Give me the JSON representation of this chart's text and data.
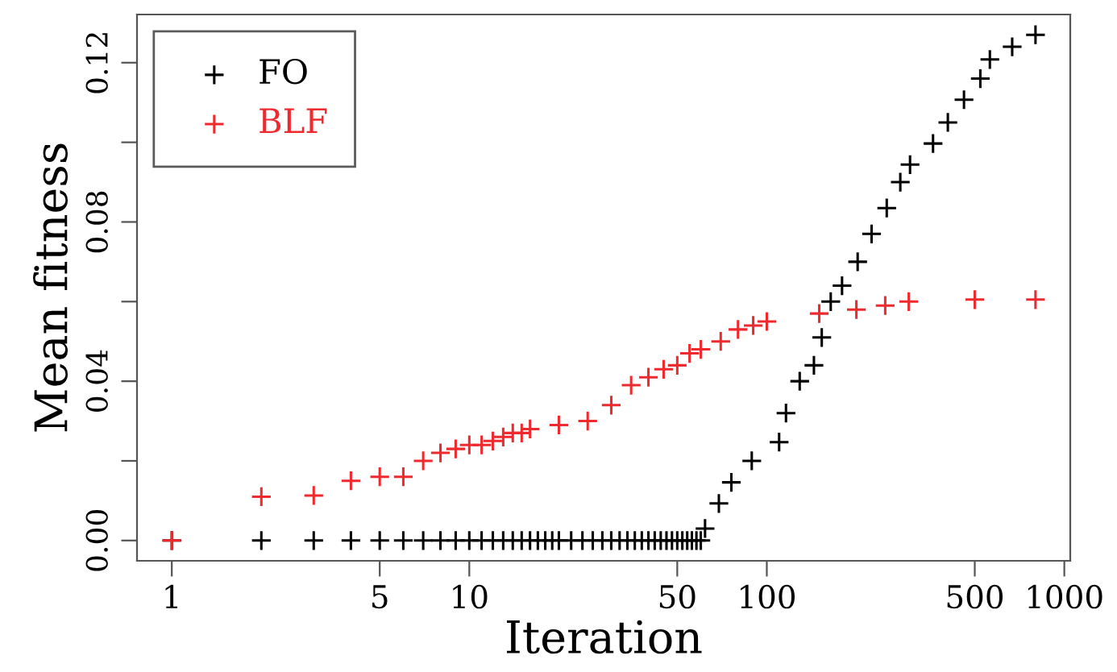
{
  "chart_data": {
    "type": "scatter",
    "xlabel": "Iteration",
    "ylabel": "Mean fitness",
    "log": "x",
    "marker": "cross",
    "legend": "top left",
    "grid": false,
    "xlim": [
      0.764,
      1047
    ],
    "xticks": [
      1,
      5,
      10,
      50,
      100,
      500,
      1000
    ],
    "ylim": [
      -0.0051,
      0.1321
    ],
    "yticks": [
      {
        "value": 0,
        "label": "0.00"
      },
      {
        "value": 0.02,
        "label": null
      },
      {
        "value": 0.04,
        "label": "0.04"
      },
      {
        "value": 0.06,
        "label": null
      },
      {
        "value": 0.08,
        "label": "0.08"
      },
      {
        "value": 0.1,
        "label": null
      },
      {
        "value": 0.12,
        "label": "0.12"
      }
    ],
    "series": [
      {
        "name": "FO",
        "color": "#000000",
        "x": [
          1,
          2,
          3,
          4,
          5,
          6,
          7,
          8,
          9,
          10,
          11,
          12,
          13,
          14,
          15,
          16,
          17,
          18,
          19,
          20,
          22,
          24,
          26,
          28,
          30,
          32,
          34,
          36,
          38,
          40,
          42,
          44,
          46,
          48,
          50,
          52,
          54,
          56,
          58,
          60,
          62,
          69,
          76,
          89,
          110,
          116,
          129,
          144,
          153,
          164,
          179,
          202,
          225,
          253,
          281,
          303,
          362,
          406,
          460,
          522,
          562,
          668,
          800
        ],
        "values": [
          0,
          0,
          0,
          0,
          0,
          0,
          0,
          0,
          0,
          0,
          0,
          0,
          0,
          0,
          0,
          0,
          0,
          0,
          0,
          0,
          0,
          0,
          0,
          0,
          0,
          0,
          0,
          0,
          0,
          0,
          0,
          0,
          0,
          0,
          0,
          0,
          0,
          0,
          0,
          0,
          0.003,
          0.0093,
          0.0146,
          0.02,
          0.0247,
          0.032,
          0.04,
          0.044,
          0.051,
          0.06,
          0.064,
          0.07,
          0.077,
          0.0835,
          0.09,
          0.0944,
          0.0997,
          0.105,
          0.1107,
          0.116,
          0.1208,
          0.124,
          0.127
        ]
      },
      {
        "name": "BLF",
        "color": "#ee2a2f",
        "x": [
          1,
          2,
          3,
          4,
          5,
          6,
          7,
          8,
          9,
          10,
          11,
          12,
          13,
          14,
          15,
          16,
          20,
          25,
          30,
          35,
          40,
          45,
          50,
          55,
          60,
          70,
          80,
          90,
          100,
          150,
          200,
          250,
          300,
          500,
          800
        ],
        "values": [
          0,
          0.011,
          0.0113,
          0.015,
          0.016,
          0.016,
          0.02,
          0.022,
          0.023,
          0.024,
          0.024,
          0.025,
          0.026,
          0.027,
          0.027,
          0.028,
          0.029,
          0.03,
          0.034,
          0.039,
          0.041,
          0.043,
          0.044,
          0.047,
          0.048,
          0.05,
          0.053,
          0.054,
          0.055,
          0.057,
          0.058,
          0.059,
          0.06,
          0.0605,
          0.0605
        ]
      }
    ]
  }
}
